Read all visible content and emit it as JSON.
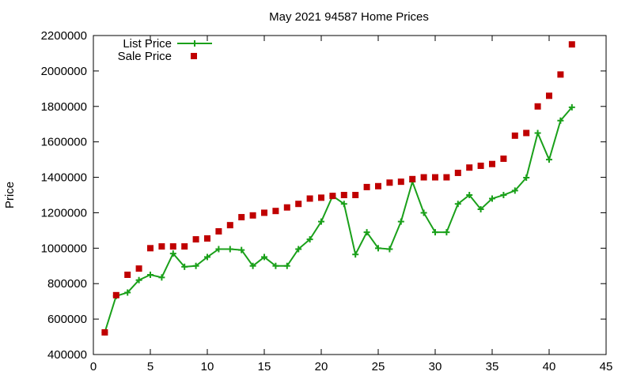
{
  "chart_data": {
    "type": "scatter",
    "title": "May 2021 94587 Home Prices",
    "xlabel": "",
    "ylabel": "Price",
    "xlim": [
      0,
      45
    ],
    "ylim": [
      400000,
      2200000
    ],
    "xticks": [
      0,
      5,
      10,
      15,
      20,
      25,
      30,
      35,
      40,
      45
    ],
    "yticks": [
      400000,
      600000,
      800000,
      1000000,
      1200000,
      1400000,
      1600000,
      1800000,
      2000000,
      2200000
    ],
    "grid": false,
    "legend_position": "top-left",
    "x": [
      1,
      2,
      3,
      4,
      5,
      6,
      7,
      8,
      9,
      10,
      11,
      12,
      13,
      14,
      15,
      16,
      17,
      18,
      19,
      20,
      21,
      22,
      23,
      24,
      25,
      26,
      27,
      28,
      29,
      30,
      31,
      32,
      33,
      34,
      35,
      36,
      37,
      38,
      39,
      40,
      41,
      42
    ],
    "series": [
      {
        "name": "List Price",
        "style": "linespoints",
        "color": "#1aa01a",
        "values": [
          525000,
          730000,
          750000,
          820000,
          850000,
          835000,
          970000,
          895000,
          900000,
          950000,
          995000,
          995000,
          990000,
          900000,
          950000,
          900000,
          900000,
          995000,
          1050000,
          1150000,
          1295000,
          1250000,
          965000,
          1090000,
          1000000,
          995000,
          1150000,
          1375000,
          1200000,
          1090000,
          1090000,
          1250000,
          1300000,
          1220000,
          1280000,
          1300000,
          1325000,
          1398000,
          1650000,
          1500000,
          1720000,
          1795000
        ]
      },
      {
        "name": "Sale Price",
        "style": "points",
        "color": "#c00000",
        "values": [
          525000,
          735000,
          850000,
          885000,
          1000000,
          1010000,
          1010000,
          1010000,
          1050000,
          1055000,
          1095000,
          1130000,
          1175000,
          1185000,
          1200000,
          1210000,
          1230000,
          1250000,
          1280000,
          1285000,
          1295000,
          1300000,
          1300000,
          1345000,
          1350000,
          1370000,
          1375000,
          1390000,
          1400000,
          1400000,
          1400000,
          1425000,
          1455000,
          1465000,
          1475000,
          1505000,
          1635000,
          1650000,
          1800000,
          1860000,
          1980000,
          2150000
        ]
      }
    ]
  }
}
